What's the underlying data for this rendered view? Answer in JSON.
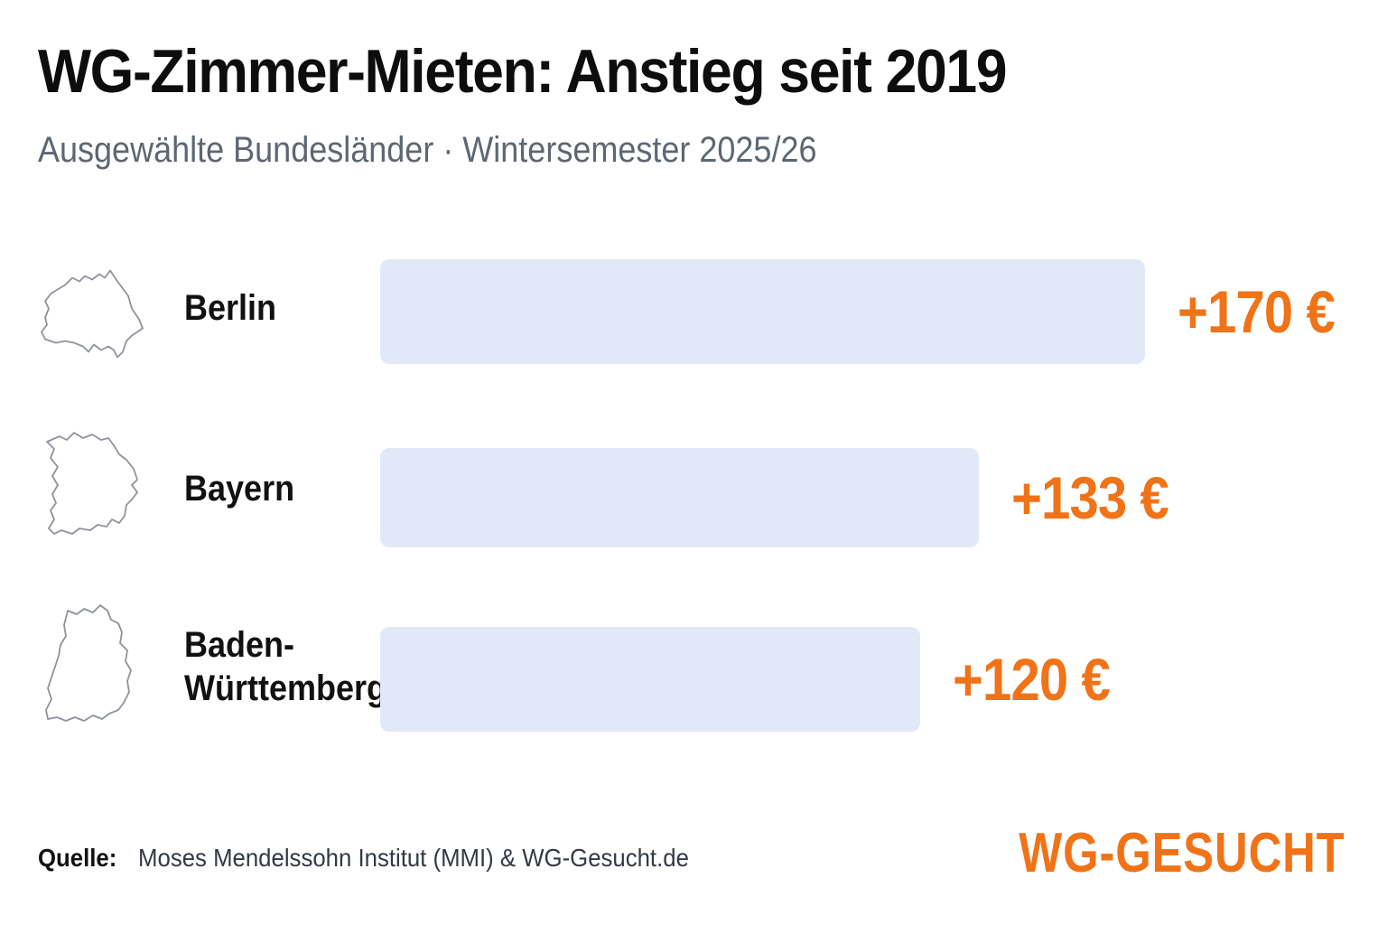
{
  "header": {
    "title": "WG-Zimmer-Mieten: Anstieg seit 2019",
    "subtitle": "Ausgewählte Bundesländer · Wintersemester 2025/26"
  },
  "rows": [
    {
      "state": "Berlin",
      "label_line1": "Berlin",
      "label_line2": "",
      "value_text": "+170 €",
      "icon": "berlin-outline-icon"
    },
    {
      "state": "Bayern",
      "label_line1": "Bayern",
      "label_line2": "",
      "value_text": "+133 €",
      "icon": "bayern-outline-icon"
    },
    {
      "state": "Baden-Württemberg",
      "label_line1": "Baden-",
      "label_line2": "Württemberg",
      "value_text": "+120 €",
      "icon": "baden-wuerttemberg-outline-icon"
    }
  ],
  "chart_data": {
    "type": "bar",
    "orientation": "horizontal",
    "title": "WG-Zimmer-Mieten: Anstieg seit 2019",
    "subtitle": "Ausgewählte Bundesländer · Wintersemester 2025/26",
    "categories": [
      "Berlin",
      "Bayern",
      "Baden-Württemberg"
    ],
    "values": [
      170,
      133,
      120
    ],
    "unit": "€",
    "xlabel": "",
    "ylabel": "",
    "grid": false,
    "legend": "none"
  },
  "footer": {
    "source_label": "Quelle:",
    "source_text": "Moses Mendelssohn Institut (MMI) & WG-Gesucht.de",
    "brand": "WG-GESUCHT"
  },
  "colors": {
    "bar": "#e1e9f8",
    "value": "#f07318",
    "brand": "#f07318",
    "title": "#0d0d0d",
    "subtitle": "#5e6672"
  }
}
